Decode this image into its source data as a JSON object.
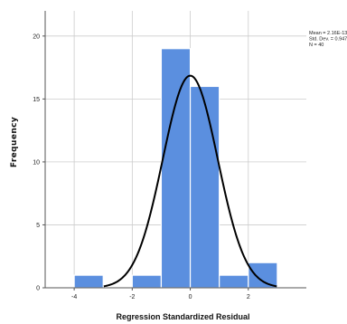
{
  "chart_data": {
    "type": "bar",
    "subtype": "histogram with normal curve",
    "xlabel": "Regression Standardized Residual",
    "ylabel": "Frequency",
    "xlim": [
      -5,
      4
    ],
    "ylim": [
      0,
      22
    ],
    "x_ticks": [
      -4,
      -2,
      0,
      2
    ],
    "x_tick_labels": [
      "-4",
      "-2",
      "0",
      "2"
    ],
    "y_ticks": [
      0,
      5,
      10,
      15,
      20
    ],
    "y_tick_labels": [
      "0",
      "5",
      "10",
      "15",
      "20"
    ],
    "bins": [
      {
        "x0": -4,
        "x1": -3,
        "count": 1
      },
      {
        "x0": -2,
        "x1": -1,
        "count": 1
      },
      {
        "x0": -1,
        "x1": 0,
        "count": 19
      },
      {
        "x0": 0,
        "x1": 1,
        "count": 16
      },
      {
        "x0": 1,
        "x1": 2,
        "count": 1
      },
      {
        "x0": 2,
        "x1": 3,
        "count": 2
      }
    ],
    "normal_curve": {
      "mean": 0,
      "sd": 0.947,
      "n": 40,
      "bin_width": 1
    },
    "stats_legend": [
      "Mean = 2.16E-13",
      "Std. Dev. = 0.947",
      "N = 40"
    ],
    "grid": true,
    "legend_position": "top-right",
    "colors": {
      "bar_fill": "#5b8fdf",
      "bar_stroke": "#ffffff",
      "curve": "#000000",
      "grid": "#cccccc",
      "axis": "#555555"
    }
  }
}
